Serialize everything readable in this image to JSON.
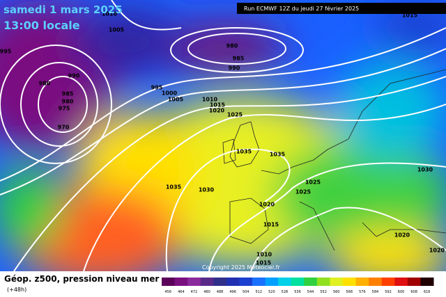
{
  "header": {
    "date": "samedi 1 mars 2025",
    "time": "13:00 locale",
    "run": "Run ECMWF 12Z du jeudi 27 février 2025"
  },
  "isobar_labels": [
    1010,
    1005,
    995,
    980,
    985,
    990,
    990,
    980,
    985,
    980,
    975,
    970,
    995,
    1000,
    1005,
    1010,
    1015,
    1020,
    1025,
    1035,
    1035,
    1035,
    1030,
    1025,
    1025,
    1020,
    1015,
    1010,
    1015,
    1030,
    1020,
    1020,
    1015
  ],
  "copyright": "Copyright 2025 Meteociel.fr",
  "footer": {
    "title": "Géop. z500, pression niveau mer",
    "lead": "(+48h)"
  },
  "legend": {
    "scale_labels": [
      456,
      464,
      472,
      480,
      488,
      496,
      504,
      512,
      520,
      528,
      536,
      544,
      552,
      560,
      568,
      576,
      584,
      592,
      600,
      608,
      616
    ],
    "colors": [
      "#5a005a",
      "#7a1080",
      "#8a2a9c",
      "#5a2a8a",
      "#30308a",
      "#2030b0",
      "#1a40d0",
      "#1a70ff",
      "#00a0ff",
      "#00d0e8",
      "#00e0a0",
      "#30d040",
      "#90e020",
      "#e0f020",
      "#ffe000",
      "#ffb000",
      "#ff8000",
      "#ff4000",
      "#e01010",
      "#a00000",
      "#200000"
    ]
  }
}
